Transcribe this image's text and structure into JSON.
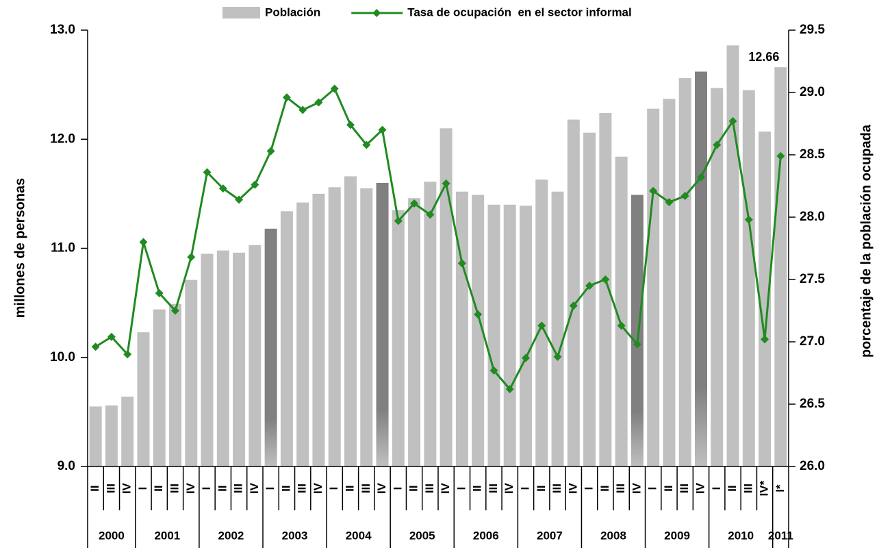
{
  "chart_data": {
    "type": "bar_line",
    "y_label": "millones de personas",
    "y2_label": "porcentaje de la población ocupada",
    "groups": [
      {
        "label": "2000",
        "categories": [
          "II",
          "III",
          "IV"
        ]
      },
      {
        "label": "2001",
        "categories": [
          "I",
          "II",
          "III",
          "IV"
        ]
      },
      {
        "label": "2002",
        "categories": [
          "I",
          "II",
          "III",
          "IV"
        ]
      },
      {
        "label": "2003",
        "categories": [
          "I",
          "II",
          "III",
          "IV"
        ]
      },
      {
        "label": "2004",
        "categories": [
          "I",
          "II",
          "III",
          "IV"
        ]
      },
      {
        "label": "2005",
        "categories": [
          "I",
          "II",
          "III",
          "IV"
        ]
      },
      {
        "label": "2006",
        "categories": [
          "I",
          "II",
          "III",
          "IV"
        ]
      },
      {
        "label": "2007",
        "categories": [
          "I",
          "II",
          "III",
          "IV"
        ]
      },
      {
        "label": "2008",
        "categories": [
          "I",
          "II",
          "III",
          "IV"
        ]
      },
      {
        "label": "2009",
        "categories": [
          "I",
          "II",
          "III",
          "IV"
        ]
      },
      {
        "label": "2010",
        "categories": [
          "I",
          "II",
          "III",
          "IV*"
        ]
      },
      {
        "label": "2011",
        "categories": [
          "I*"
        ]
      }
    ],
    "series": [
      {
        "name": "Población",
        "type": "bar",
        "color": "#c0c0c0",
        "colors": [
          "#c0c0c0",
          "#c0c0c0",
          "#c0c0c0",
          "#c0c0c0",
          "#c0c0c0",
          "#c0c0c0",
          "#c0c0c0",
          "#c0c0c0",
          "#c0c0c0",
          "#c0c0c0",
          "#c0c0c0",
          "#808080",
          "#c0c0c0",
          "#c0c0c0",
          "#c0c0c0",
          "#c0c0c0",
          "#c0c0c0",
          "#c0c0c0",
          "#808080",
          "#c0c0c0",
          "#c0c0c0",
          "#c0c0c0",
          "#c0c0c0",
          "#c0c0c0",
          "#c0c0c0",
          "#c0c0c0",
          "#c0c0c0",
          "#c0c0c0",
          "#c0c0c0",
          "#c0c0c0",
          "#c0c0c0",
          "#c0c0c0",
          "#c0c0c0",
          "#c0c0c0",
          "#808080",
          "#c0c0c0",
          "#c0c0c0",
          "#c0c0c0",
          "#808080",
          "#c0c0c0",
          "#c0c0c0",
          "#c0c0c0",
          "#c0c0c0",
          "#c0c0c0"
        ],
        "values": [
          9.55,
          9.56,
          9.64,
          10.23,
          10.44,
          10.49,
          10.71,
          10.95,
          10.98,
          10.96,
          11.03,
          11.18,
          11.34,
          11.42,
          11.5,
          11.56,
          11.66,
          11.55,
          11.6,
          11.35,
          11.46,
          11.61,
          12.1,
          11.52,
          11.49,
          11.4,
          11.4,
          11.39,
          11.63,
          11.52,
          12.18,
          12.06,
          12.24,
          11.84,
          11.49,
          12.28,
          12.37,
          12.56,
          12.62,
          12.47,
          12.86,
          12.45,
          12.07,
          12.66
        ],
        "value_labels": [
          null,
          null,
          null,
          null,
          null,
          null,
          null,
          null,
          null,
          null,
          null,
          null,
          null,
          null,
          null,
          null,
          null,
          null,
          null,
          null,
          null,
          null,
          null,
          null,
          null,
          null,
          null,
          null,
          null,
          null,
          null,
          null,
          null,
          null,
          null,
          null,
          null,
          null,
          null,
          null,
          null,
          null,
          null,
          "12.66"
        ]
      },
      {
        "name": "Tasa de ocupación  en el sector informal",
        "type": "line",
        "axis": "y2",
        "color": "#218a21",
        "values": [
          26.96,
          27.04,
          26.9,
          27.8,
          27.39,
          27.25,
          27.68,
          28.36,
          28.23,
          28.14,
          28.26,
          28.53,
          28.96,
          28.86,
          28.92,
          29.03,
          28.74,
          28.58,
          28.7,
          27.97,
          28.11,
          28.02,
          28.27,
          27.63,
          27.22,
          26.77,
          26.62,
          26.87,
          27.13,
          26.88,
          27.29,
          27.45,
          27.5,
          27.13,
          26.98,
          28.21,
          28.12,
          28.17,
          28.32,
          28.58,
          28.77,
          27.98,
          27.02,
          28.49
        ]
      }
    ],
    "ylim": [
      9,
      13
    ],
    "yticks": [
      {
        "value": 9,
        "label": "9.0"
      },
      {
        "value": 10,
        "label": "10.0"
      },
      {
        "value": 11,
        "label": "11.0"
      },
      {
        "value": 12,
        "label": "12.0"
      },
      {
        "value": 13,
        "label": "13.0"
      }
    ],
    "y2lim": [
      26,
      29.5
    ],
    "y2ticks": [
      {
        "value": 26,
        "label": "26.0"
      },
      26.5,
      {
        "value": 27,
        "label": "27.0"
      },
      27.5,
      {
        "value": 28,
        "label": "28.0"
      },
      28.5,
      {
        "value": 29,
        "label": "29.0"
      },
      29.5
    ],
    "legend": "top"
  }
}
